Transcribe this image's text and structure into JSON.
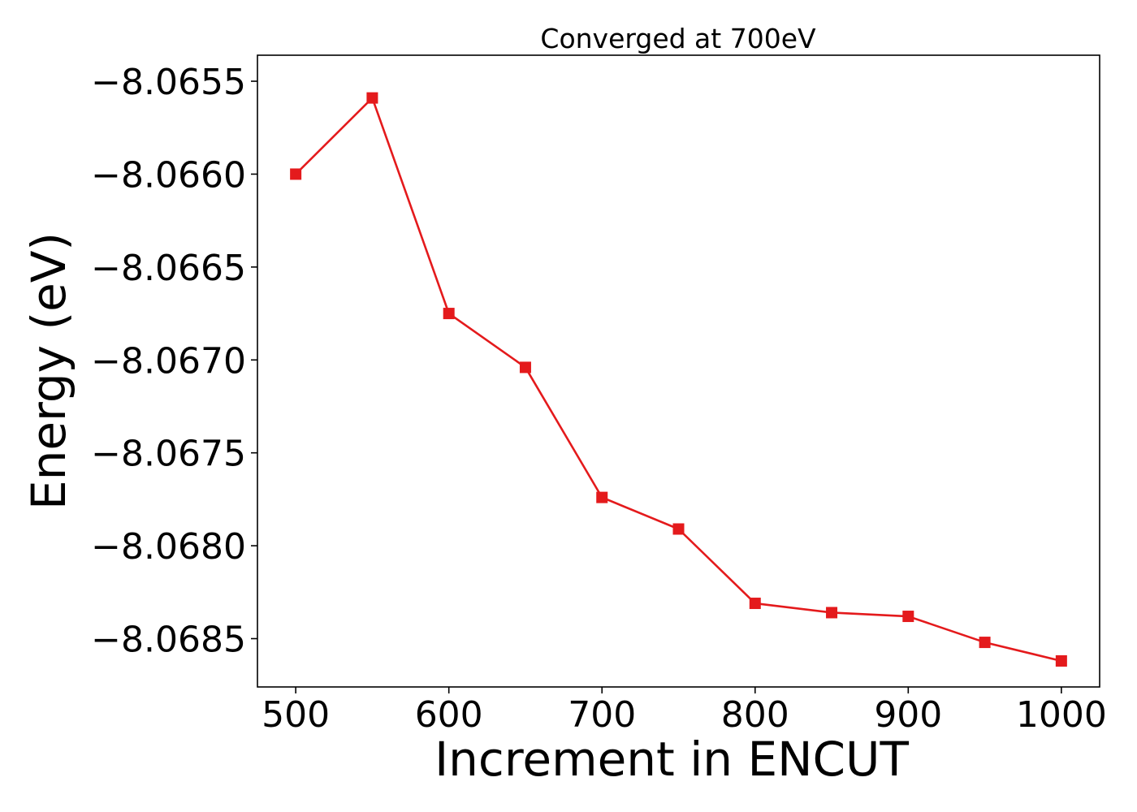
{
  "chart_data": {
    "type": "line",
    "title": "Converged at 700eV",
    "xlabel": "Increment in ENCUT",
    "ylabel": "Energy (eV)",
    "xlim": [
      475,
      1025
    ],
    "ylim": [
      -8.06876,
      -8.06536
    ],
    "x_ticks": [
      500,
      600,
      700,
      800,
      900,
      1000
    ],
    "x_tick_labels": [
      "500",
      "600",
      "700",
      "800",
      "900",
      "1000"
    ],
    "y_ticks": [
      -8.0655,
      -8.066,
      -8.0665,
      -8.067,
      -8.0675,
      -8.068,
      -8.0685
    ],
    "y_tick_labels": [
      "−8.0655",
      "−8.0660",
      "−8.0665",
      "−8.0670",
      "−8.0675",
      "−8.0680",
      "−8.0685"
    ],
    "grid": false,
    "series": [
      {
        "color": "#e41a1c",
        "marker": "square",
        "x": [
          500,
          550,
          600,
          650,
          700,
          750,
          800,
          850,
          900,
          950,
          1000
        ],
        "y": [
          -8.066,
          -8.06559,
          -8.06675,
          -8.06704,
          -8.06774,
          -8.06791,
          -8.06831,
          -8.06836,
          -8.06838,
          -8.06852,
          -8.06862
        ]
      }
    ]
  }
}
